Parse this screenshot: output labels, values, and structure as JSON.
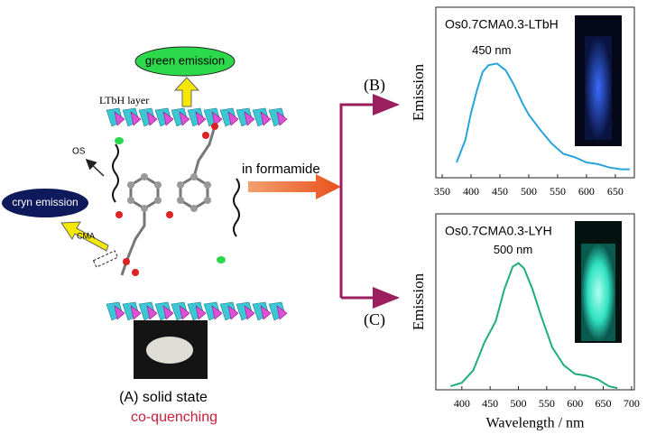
{
  "diagram": {
    "labels": {
      "green_emission": "green emission",
      "ltbh_layer": "LTbH layer",
      "os": "OS",
      "cryn_emission": "cryn emission",
      "cma": "CMA",
      "in_formamide": "in formamide",
      "panel_b": "(B)",
      "panel_c": "(C)",
      "solid_state": "(A) solid state",
      "co_quenching": "co-quenching"
    }
  },
  "chart_data": [
    {
      "type": "line",
      "title": "Os0.7CMA0.3-LTbH",
      "annotation": "450 nm",
      "y_label": "Emission",
      "x": [
        375,
        390,
        400,
        410,
        420,
        430,
        445,
        460,
        475,
        490,
        500,
        520,
        540,
        560,
        580,
        600,
        620,
        640,
        660,
        675
      ],
      "series": [
        {
          "color": "#29a3dc",
          "values": [
            0.09,
            0.22,
            0.38,
            0.51,
            0.62,
            0.66,
            0.67,
            0.63,
            0.54,
            0.43,
            0.37,
            0.28,
            0.2,
            0.14,
            0.12,
            0.09,
            0.08,
            0.06,
            0.05,
            0.05
          ]
        }
      ],
      "xlim": [
        339,
        683
      ],
      "xticks": [
        350,
        400,
        450,
        500,
        550,
        600,
        650
      ],
      "ylim": [
        0,
        1
      ]
    },
    {
      "type": "line",
      "title": "Os0.7CMA0.3-LYH",
      "annotation": "500 nm",
      "y_label": "Emission",
      "x_label": "Wavelength / nm",
      "x": [
        380,
        400,
        420,
        440,
        460,
        475,
        490,
        500,
        510,
        525,
        540,
        560,
        580,
        600,
        620,
        640,
        660,
        675
      ],
      "series": [
        {
          "color": "#1fae7a",
          "values": [
            0.02,
            0.04,
            0.11,
            0.27,
            0.39,
            0.57,
            0.7,
            0.72,
            0.69,
            0.57,
            0.42,
            0.24,
            0.14,
            0.09,
            0.08,
            0.06,
            0.02,
            0.01
          ]
        }
      ],
      "xlim": [
        354,
        705
      ],
      "xticks": [
        400,
        450,
        500,
        550,
        600,
        650,
        700
      ],
      "ylim": [
        0,
        1
      ]
    }
  ]
}
